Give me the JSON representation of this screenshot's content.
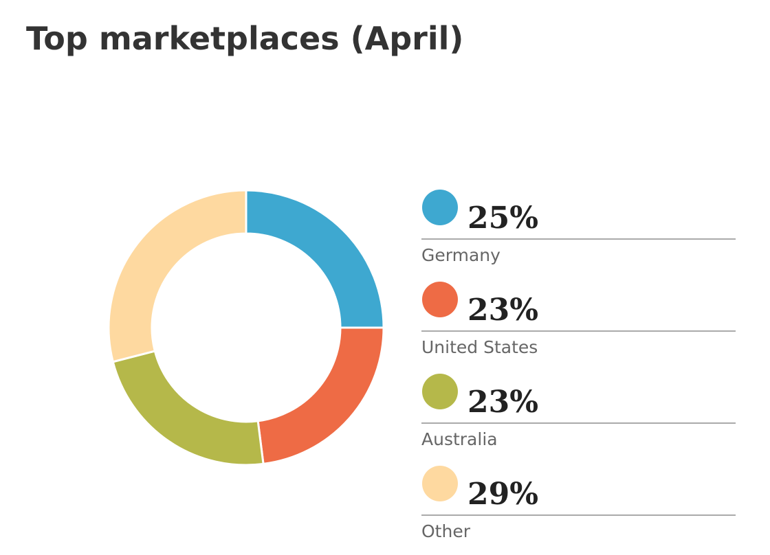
{
  "chart_data": {
    "type": "donut",
    "title": "Top marketplaces (April)",
    "categories": [
      "Germany",
      "United States",
      "Australia",
      "Other"
    ],
    "values": [
      25,
      23,
      23,
      29
    ],
    "value_labels": [
      "25%",
      "23%",
      "23%",
      "29%"
    ],
    "colors": [
      "#3ea8d0",
      "#ee6b45",
      "#b5b84a",
      "#fed9a0"
    ]
  }
}
